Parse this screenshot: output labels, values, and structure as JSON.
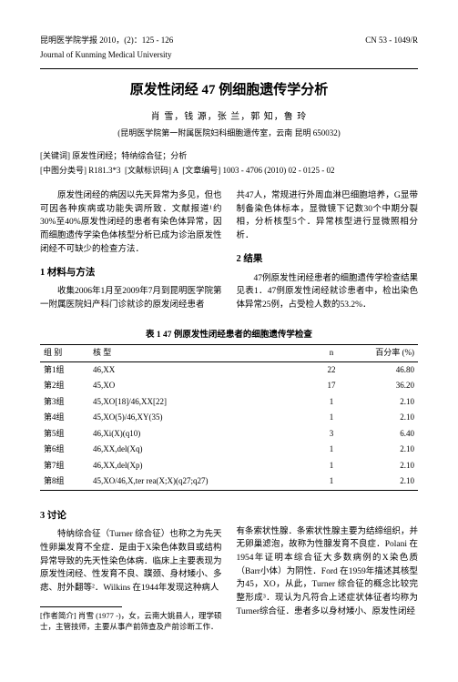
{
  "header": {
    "journal_cn": "昆明医学院学报  2010，(2)：125 - 126",
    "issn": "CN 53 - 1049/R",
    "journal_en": "Journal of Kunming Medical University"
  },
  "title": "原发性闭经 47 例细胞遗传学分析",
  "authors": "肖 雪，钱 源，张 兰，郭 知，鲁 玲",
  "affiliation": "(昆明医学院第一附属医院妇科细胞遗传室，云南 昆明  650032)",
  "keywords_label": "[关键词]",
  "keywords": "原发性闭经；特纳综合征；分析",
  "class_label1": "[中图分类号]",
  "class_val1": "R181.3*3",
  "class_label2": "[文献标识码]",
  "class_val2": "A",
  "class_label3": "[文章编号]",
  "class_val3": "1003 - 4706 (2010) 02 - 0125 - 02",
  "body": {
    "intro_left": "原发性闭经的病因以先天异常为多见，但也可因各种疾病或功能失调所致．文献报道¹约30%至40%原发性闭经的患者有染色体异常，因而细胞遗传学染色体核型分析已成为诊治原发性闭经不可缺少的检查方法．",
    "sec1_head": "1  材料与方法",
    "sec1_left": "收集2006年1月至2009年7月到昆明医学院第一附属医院妇产科门诊就诊的原发闭经患者",
    "sec1_right": "共47人，常规进行外周血淋巴细胞培养，G显带制备染色体标本，显微镜下记数30个中期分裂相，分析核型5个．异常核型进行显微照相分析．",
    "sec2_head": "2  结果",
    "sec2_right": "47例原发性闭经患者的细胞遗传学检查结果见表1．47例原发性闭经就诊患者中，检出染色体异常25例，占受检人数的53.2%．",
    "table_caption": "表 1  47 例原发性闭经患者的细胞遗传学检查",
    "sec3_head": "3  讨论",
    "disc_left_p1": "特纳综合征（Turner 综合征）也称之为先天性卵巢发育不全症．是由于X染色体数目或结构异常导致的先天性染色体病．临床上主要表现为原发性闭经、性发育不良、蹼颈、身材矮小、多痣、肘外翻等²．Wilkins 在1944年发现这种病人",
    "disc_right_p1": "有条索状性腺．条索状性腺主要为结缔组织，并无卵巢滤泡，故称为性腺发育不良症．Polani 在1954年证明本综合征大多数病例的X染色质（Barr小体）为阴性．Ford 在1959年描述其核型为45，XO，从此，Turner 综合征的概念比较完整形成³．现认为凡符合上述症状体征者均称为Turner综合征．患者多以身材矮小、原发性闭经"
  },
  "table": {
    "headers": [
      "组 别",
      "核 型",
      "n",
      "百分率 (%)"
    ],
    "rows": [
      [
        "第1组",
        "46,XX",
        "22",
        "46.80"
      ],
      [
        "第2组",
        "45,XO",
        "17",
        "36.20"
      ],
      [
        "第3组",
        "45,XO[18]/46,XX[22]",
        "1",
        "2.10"
      ],
      [
        "第4组",
        "45,XO(5)/46,XY(35)",
        "1",
        "2.10"
      ],
      [
        "第5组",
        "46,Xi(X)(q10)",
        "3",
        "6.40"
      ],
      [
        "第6组",
        "46,XX,del(Xq)",
        "1",
        "2.10"
      ],
      [
        "第7组",
        "46,XX,del(Xp)",
        "1",
        "2.10"
      ],
      [
        "第8组",
        "45,XO/46,X,ter rea(X;X)(q27;q27)",
        "1",
        "2.10"
      ]
    ]
  },
  "footnote": {
    "label": "[作者简介]",
    "text": "肖雪 (1977 -)，女，云南大姚县人，理学硕士，主管技师，主要从事产前筛查及产前诊断工作．"
  }
}
